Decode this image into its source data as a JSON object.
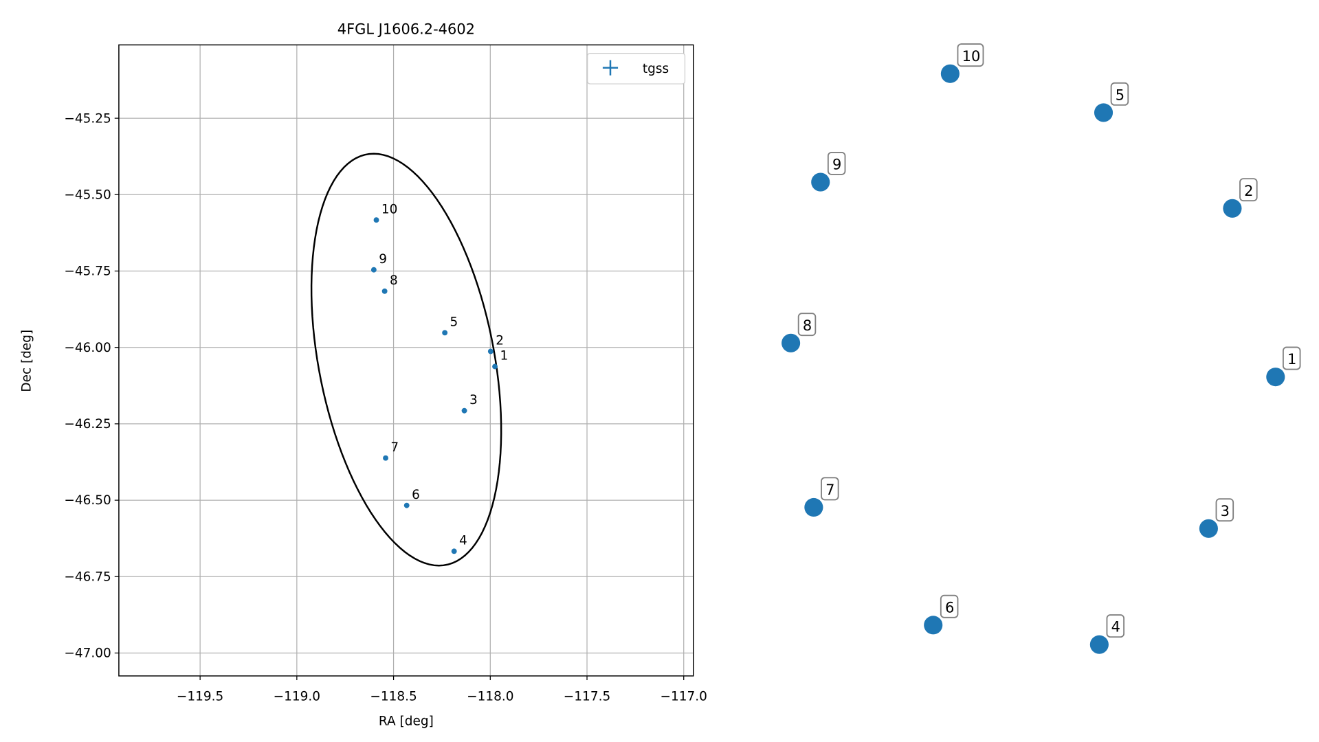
{
  "chart_data": [
    {
      "type": "scatter",
      "title": "4FGL J1606.2-4602",
      "xlabel": "RA [deg]",
      "ylabel": "Dec [deg]",
      "xlim": [
        -119.92,
        -116.95
      ],
      "ylim": [
        -47.075,
        -45.01
      ],
      "xticks": [
        {
          "value": -119.5,
          "label": "−119.5"
        },
        {
          "value": -119.0,
          "label": "−119.0"
        },
        {
          "value": -118.5,
          "label": "−118.5"
        },
        {
          "value": -118.0,
          "label": "−118.0"
        },
        {
          "value": -117.5,
          "label": "−117.5"
        },
        {
          "value": -117.0,
          "label": "−117.0"
        }
      ],
      "yticks": [
        {
          "value": -45.25,
          "label": "−45.25"
        },
        {
          "value": -45.5,
          "label": "−45.50"
        },
        {
          "value": -45.75,
          "label": "−45.75"
        },
        {
          "value": -46.0,
          "label": "−46.00"
        },
        {
          "value": -46.25,
          "label": "−46.25"
        },
        {
          "value": -46.5,
          "label": "−46.50"
        },
        {
          "value": -46.75,
          "label": "−46.75"
        },
        {
          "value": -47.0,
          "label": "−47.00"
        }
      ],
      "grid": true,
      "legend": "upper right",
      "series": [
        {
          "name": "tgss",
          "color": "#1f77b4",
          "labels": [
            "1",
            "2",
            "3",
            "4",
            "5",
            "6",
            "7",
            "8",
            "9",
            "10"
          ],
          "x": [
            -117.976,
            -117.998,
            -118.134,
            -118.187,
            -118.235,
            -118.432,
            -118.541,
            -118.546,
            -118.602,
            -118.589
          ],
          "values": [
            -46.0625,
            -46.013,
            -46.207,
            -46.667,
            -45.952,
            -46.517,
            -46.362,
            -45.816,
            -45.746,
            -45.583
          ]
        }
      ],
      "ellipse": {
        "center": [
          -118.434,
          -46.04
        ],
        "width": 1.419,
        "height": 0.875,
        "angle": 113.4,
        "color": "#000000"
      }
    },
    {
      "type": "nodes",
      "color": "#1f77b4",
      "labels": [
        "1",
        "2",
        "3",
        "4",
        "5",
        "6",
        "7",
        "8",
        "9",
        "10"
      ]
    }
  ]
}
